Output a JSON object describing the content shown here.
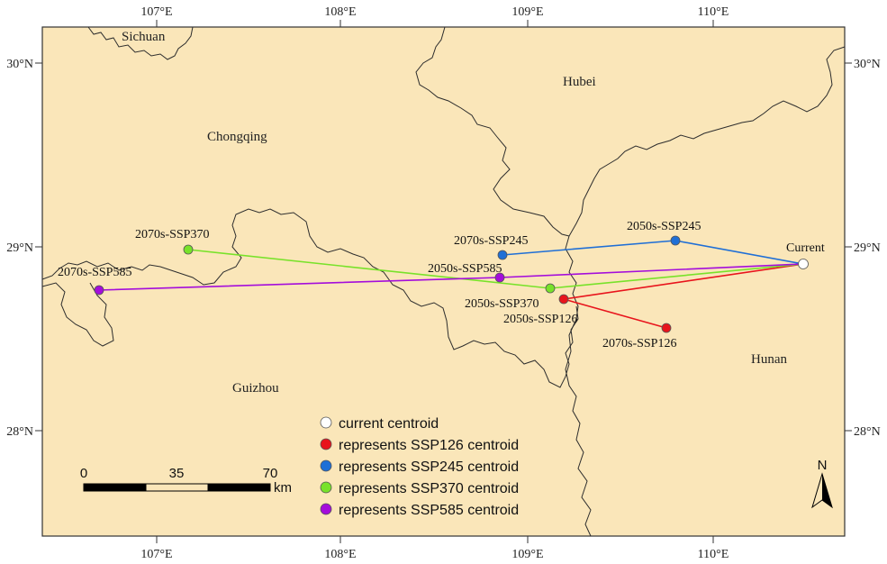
{
  "map": {
    "lon_labels": [
      "107°E",
      "108°E",
      "109°E",
      "110°E"
    ],
    "lat_labels": [
      "30°N",
      "29°N",
      "28°N"
    ],
    "regions": [
      {
        "name": "Sichuan"
      },
      {
        "name": "Chongqing"
      },
      {
        "name": "Hubei"
      },
      {
        "name": "Guizhou"
      },
      {
        "name": "Hunan"
      }
    ],
    "colors": {
      "land": "#fae6b9",
      "border": "#333333",
      "current": "#ffffff",
      "ssp126": "#e8141c",
      "ssp245": "#1f6fd6",
      "ssp370": "#78e22a",
      "ssp585": "#a40ddb"
    },
    "centroids": [
      {
        "label": "Current",
        "scenario": "current"
      },
      {
        "label": "2050s-SSP126",
        "scenario": "ssp126"
      },
      {
        "label": "2070s-SSP126",
        "scenario": "ssp126"
      },
      {
        "label": "2050s-SSP245",
        "scenario": "ssp245"
      },
      {
        "label": "2070s-SSP245",
        "scenario": "ssp245"
      },
      {
        "label": "2050s-SSP370",
        "scenario": "ssp370"
      },
      {
        "label": "2070s-SSP370",
        "scenario": "ssp370"
      },
      {
        "label": "2050s-SSP585",
        "scenario": "ssp585"
      },
      {
        "label": "2070s-SSP585",
        "scenario": "ssp585"
      }
    ],
    "legend": [
      {
        "label": "current centroid",
        "scenario": "current"
      },
      {
        "label": "represents SSP126 centroid",
        "scenario": "ssp126"
      },
      {
        "label": "represents SSP245 centroid",
        "scenario": "ssp245"
      },
      {
        "label": "represents SSP370 centroid",
        "scenario": "ssp370"
      },
      {
        "label": "represents SSP585 centroid",
        "scenario": "ssp585"
      }
    ],
    "scale_bar": {
      "ticks": [
        "0",
        "35",
        "70"
      ],
      "unit": "km"
    },
    "north_arrow": "N"
  }
}
